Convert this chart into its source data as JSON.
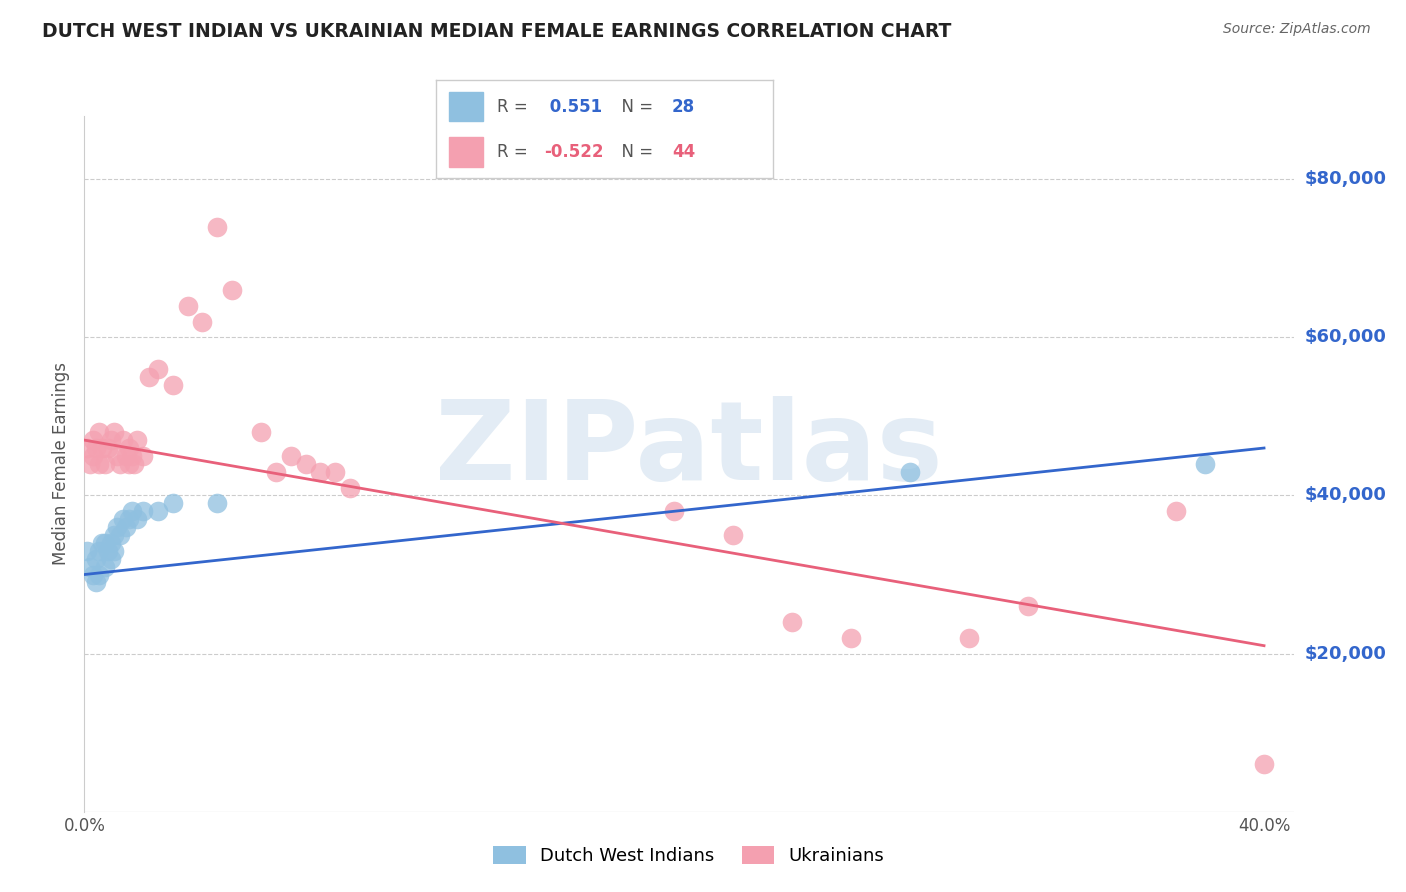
{
  "title": "DUTCH WEST INDIAN VS UKRAINIAN MEDIAN FEMALE EARNINGS CORRELATION CHART",
  "source": "Source: ZipAtlas.com",
  "ylabel": "Median Female Earnings",
  "y_tick_labels": [
    "$20,000",
    "$40,000",
    "$60,000",
    "$80,000"
  ],
  "y_tick_values": [
    20000,
    40000,
    60000,
    80000
  ],
  "y_min": 0,
  "y_max": 88000,
  "x_min": 0.0,
  "x_max": 0.41,
  "x_ticks": [
    0.0,
    0.4
  ],
  "x_tick_labels": [
    "0.0%",
    "40.0%"
  ],
  "blue_label": "Dutch West Indians",
  "pink_label": "Ukrainians",
  "blue_R": "0.551",
  "blue_N": "28",
  "pink_R": "-0.522",
  "pink_N": "44",
  "blue_color": "#8fc0e0",
  "pink_color": "#f4a0b0",
  "blue_line_color": "#3366cc",
  "pink_line_color": "#e8607a",
  "watermark": "ZIPatlas",
  "watermark_color": "#ccdded",
  "blue_trend_x": [
    0.0,
    0.4
  ],
  "blue_trend_y": [
    30000,
    46000
  ],
  "pink_trend_x": [
    0.0,
    0.4
  ],
  "pink_trend_y": [
    47000,
    21000
  ],
  "blue_x": [
    0.001,
    0.002,
    0.003,
    0.004,
    0.004,
    0.005,
    0.005,
    0.006,
    0.007,
    0.007,
    0.008,
    0.009,
    0.009,
    0.01,
    0.01,
    0.011,
    0.012,
    0.013,
    0.014,
    0.015,
    0.016,
    0.018,
    0.02,
    0.025,
    0.03,
    0.045,
    0.28,
    0.38
  ],
  "blue_y": [
    33000,
    31000,
    30000,
    32000,
    29000,
    30000,
    33000,
    34000,
    31000,
    34000,
    33000,
    34000,
    32000,
    35000,
    33000,
    36000,
    35000,
    37000,
    36000,
    37000,
    38000,
    37000,
    38000,
    38000,
    39000,
    39000,
    43000,
    44000
  ],
  "pink_x": [
    0.001,
    0.002,
    0.003,
    0.003,
    0.004,
    0.005,
    0.005,
    0.006,
    0.007,
    0.008,
    0.009,
    0.01,
    0.011,
    0.012,
    0.013,
    0.014,
    0.015,
    0.015,
    0.016,
    0.017,
    0.018,
    0.02,
    0.022,
    0.025,
    0.03,
    0.035,
    0.04,
    0.045,
    0.05,
    0.06,
    0.065,
    0.07,
    0.075,
    0.08,
    0.085,
    0.09,
    0.2,
    0.22,
    0.24,
    0.26,
    0.3,
    0.32,
    0.37,
    0.4
  ],
  "pink_y": [
    46000,
    44000,
    47000,
    45000,
    46000,
    48000,
    44000,
    46000,
    44000,
    46000,
    47000,
    48000,
    45000,
    44000,
    47000,
    45000,
    44000,
    46000,
    45000,
    44000,
    47000,
    45000,
    55000,
    56000,
    54000,
    64000,
    62000,
    74000,
    66000,
    48000,
    43000,
    45000,
    44000,
    43000,
    43000,
    41000,
    38000,
    35000,
    24000,
    22000,
    22000,
    26000,
    38000,
    6000
  ]
}
